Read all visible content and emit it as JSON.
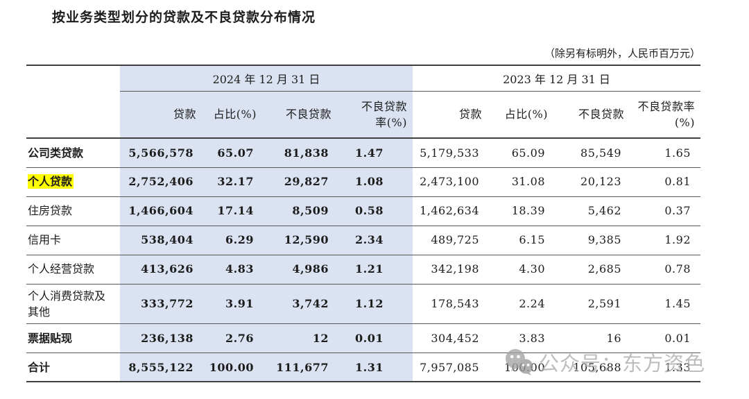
{
  "title": "按业务类型划分的贷款及不良贷款分布情况",
  "unit_note": "（除另有标明外，人民币百万元）",
  "colors": {
    "header_shade": "#dbe2f1",
    "highlight": "#ffff00",
    "watermark_gray": "#ababab"
  },
  "table": {
    "date_2024": "2024 年 12 月 31 日",
    "date_2023": "2023 年 12 月 31 日",
    "headers_2024": {
      "loans": "贷款",
      "share": "占比(%)",
      "npl": "不良贷款",
      "ratio_line1": "不良贷款",
      "ratio_line2": "率(%)"
    },
    "headers_2023": {
      "loans": "贷款",
      "share": "占比(%)",
      "npl": "不良贷款",
      "ratio_line1": "不良贷款率",
      "ratio_line2": "(%)"
    },
    "rows": [
      {
        "label": "公司类贷款",
        "bold": true,
        "highlight": false,
        "y2024": [
          "5,566,578",
          "65.07",
          "81,838",
          "1.47"
        ],
        "y2023": [
          "5,179,533",
          "65.09",
          "85,549",
          "1.65"
        ]
      },
      {
        "label": "个人贷款",
        "bold": true,
        "highlight": true,
        "y2024": [
          "2,752,406",
          "32.17",
          "29,827",
          "1.08"
        ],
        "y2023": [
          "2,473,100",
          "31.08",
          "20,123",
          "0.81"
        ]
      },
      {
        "label": "住房贷款",
        "bold": false,
        "highlight": false,
        "y2024": [
          "1,466,604",
          "17.14",
          "8,509",
          "0.58"
        ],
        "y2023": [
          "1,462,634",
          "18.39",
          "5,462",
          "0.37"
        ]
      },
      {
        "label": "信用卡",
        "bold": false,
        "highlight": false,
        "y2024": [
          "538,404",
          "6.29",
          "12,590",
          "2.34"
        ],
        "y2023": [
          "489,725",
          "6.15",
          "9,385",
          "1.92"
        ]
      },
      {
        "label": "个人经营贷款",
        "bold": false,
        "highlight": false,
        "y2024": [
          "413,626",
          "4.83",
          "4,986",
          "1.21"
        ],
        "y2023": [
          "342,198",
          "4.30",
          "2,685",
          "0.78"
        ]
      },
      {
        "label": "个人消费贷款及其他",
        "bold": false,
        "highlight": false,
        "y2024": [
          "333,772",
          "3.91",
          "3,742",
          "1.12"
        ],
        "y2023": [
          "178,543",
          "2.24",
          "2,591",
          "1.45"
        ]
      },
      {
        "label": "票据贴现",
        "bold": true,
        "highlight": false,
        "y2024": [
          "236,138",
          "2.76",
          "12",
          "0.01"
        ],
        "y2023": [
          "304,452",
          "3.83",
          "16",
          "0.01"
        ]
      },
      {
        "label": "合计",
        "bold": true,
        "highlight": false,
        "y2024": [
          "8,555,122",
          "100.00",
          "111,677",
          "1.31"
        ],
        "y2023": [
          "7,957,085",
          "100.00",
          "105,688",
          "1.33"
        ]
      }
    ]
  },
  "watermark": {
    "icon": "wechat-icon",
    "text": "公众号：东方资色"
  }
}
